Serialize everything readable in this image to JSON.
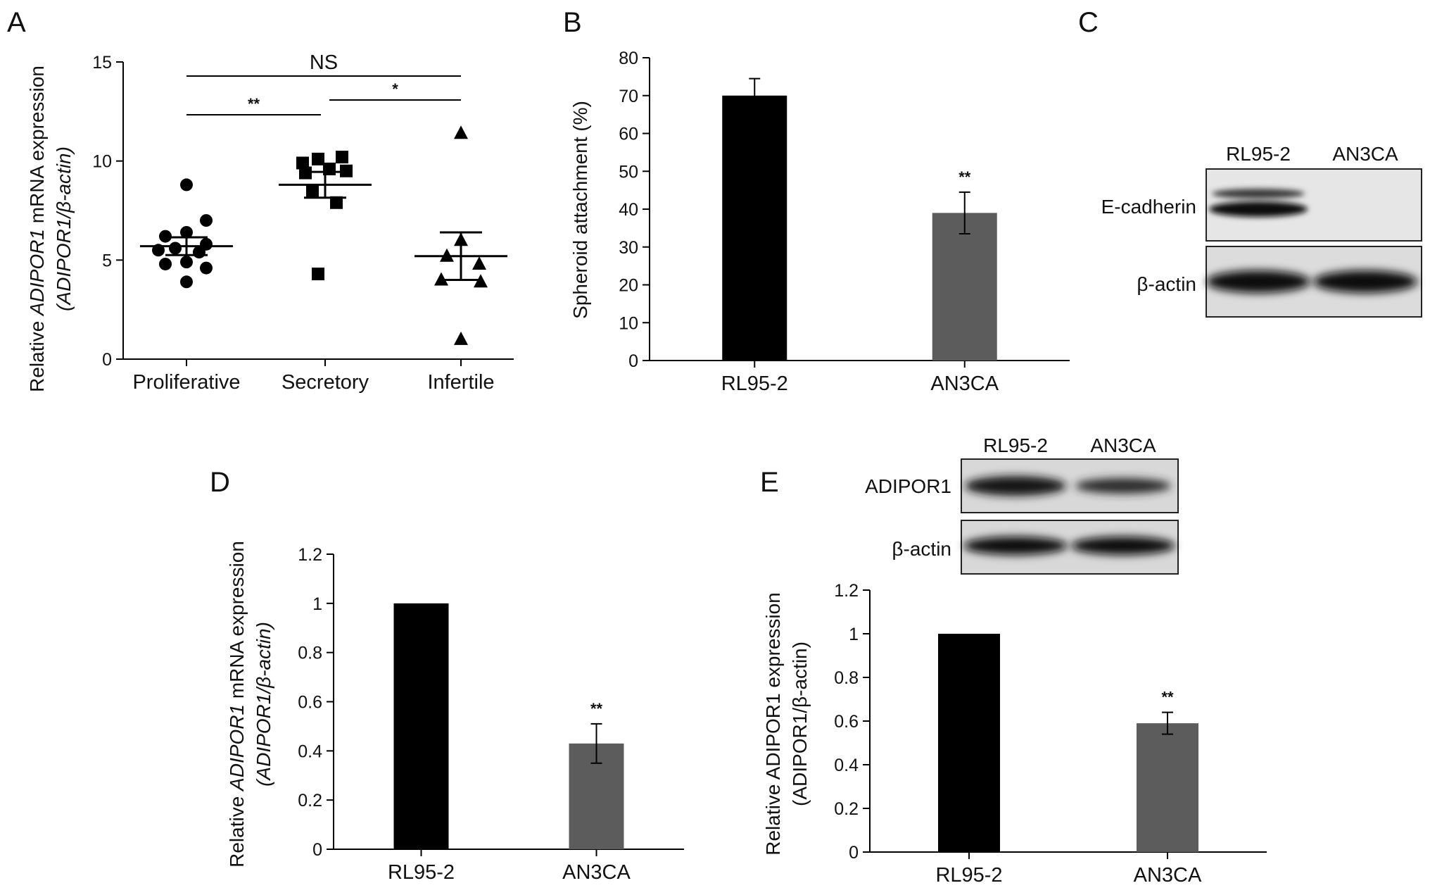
{
  "panels": {
    "A": "A",
    "B": "B",
    "C": "C",
    "D": "D",
    "E": "E"
  },
  "chart_data": [
    {
      "id": "A",
      "type": "scatter",
      "categories": [
        "Proliferative",
        "Secretory",
        "Infertile"
      ],
      "ylabel": "Relative ADIPOR1 mRNA expression (ADIPOR1/β-actin)",
      "ylabel_line1": {
        "pre": "Relative ",
        "ital": "ADIPOR1",
        "post": " mRNA expression"
      },
      "ylabel_line2": "(ADIPOR1/β-actin)",
      "ylim": [
        0,
        15
      ],
      "yticks": [
        0,
        5,
        10,
        15
      ],
      "series": [
        {
          "name": "Proliferative",
          "marker": "circle",
          "values": [
            8.8,
            7.0,
            6.4,
            6.2,
            5.8,
            5.6,
            5.5,
            5.4,
            4.9,
            4.8,
            4.6,
            3.9
          ],
          "mean": 5.7,
          "sem": 0.45
        },
        {
          "name": "Secretory",
          "marker": "square",
          "values": [
            10.1,
            10.2,
            9.9,
            9.6,
            9.4,
            9.5,
            8.5,
            7.9,
            4.3
          ],
          "mean": 8.8,
          "sem": 0.65
        },
        {
          "name": "Infertile",
          "marker": "triangle",
          "values": [
            11.4,
            6.0,
            5.2,
            4.8,
            4.0,
            3.9,
            1.0
          ],
          "mean": 5.2,
          "sem": 1.2
        }
      ],
      "comparisons": [
        {
          "from": 0,
          "to": 2,
          "label": "NS"
        },
        {
          "from": 0,
          "to": 1,
          "label": "**"
        },
        {
          "from": 1,
          "to": 2,
          "label": "*"
        }
      ]
    },
    {
      "id": "B",
      "type": "bar",
      "categories": [
        "RL95-2",
        "AN3CA"
      ],
      "values": [
        70,
        39
      ],
      "errors": [
        4.5,
        5.5
      ],
      "colors": [
        "#000000",
        "#5c5c5c"
      ],
      "annotations": [
        "",
        "**"
      ],
      "ylabel": "Spheroid attachment (%)",
      "ylim": [
        0,
        80
      ],
      "yticks": [
        0,
        10,
        20,
        30,
        40,
        50,
        60,
        70,
        80
      ]
    },
    {
      "id": "D",
      "type": "bar",
      "categories": [
        "RL95-2",
        "AN3CA"
      ],
      "values": [
        1.0,
        0.43
      ],
      "errors": [
        0.0,
        0.08
      ],
      "colors": [
        "#000000",
        "#5c5c5c"
      ],
      "annotations": [
        "",
        "**"
      ],
      "ylabel": "Relative ADIPOR1 mRNA expression (ADIPOR1/β-actin)",
      "ylabel_line1": {
        "pre": "Relative ",
        "ital": "ADIPOR1",
        "post": " mRNA expression"
      },
      "ylabel_line2": "(ADIPOR1/β-actin)",
      "ylim": [
        0,
        1.2
      ],
      "yticks": [
        "0",
        "0.2",
        "0.4",
        "0.6",
        "0.8",
        "1",
        "1.2"
      ]
    },
    {
      "id": "E",
      "type": "bar",
      "categories": [
        "RL95-2",
        "AN3CA"
      ],
      "values": [
        1.0,
        0.59
      ],
      "errors": [
        0.0,
        0.05
      ],
      "colors": [
        "#000000",
        "#5c5c5c"
      ],
      "annotations": [
        "",
        "**"
      ],
      "ylabel": "Relative ADIPOR1 expression (ADIPOR1/β-actin)",
      "ylabel_line1": "Relative ADIPOR1 expression",
      "ylabel_line2": "(ADIPOR1/β-actin)",
      "ylim": [
        0,
        1.2
      ],
      "yticks": [
        "0",
        "0.2",
        "0.4",
        "0.6",
        "0.8",
        "1",
        "1.2"
      ]
    }
  ],
  "blots": {
    "C": {
      "lanes": [
        "RL95-2",
        "AN3CA"
      ],
      "rows": [
        "E-cadherin",
        "β-actin"
      ]
    },
    "E": {
      "lanes": [
        "RL95-2",
        "AN3CA"
      ],
      "rows": [
        "ADIPOR1",
        "β-actin"
      ]
    }
  }
}
